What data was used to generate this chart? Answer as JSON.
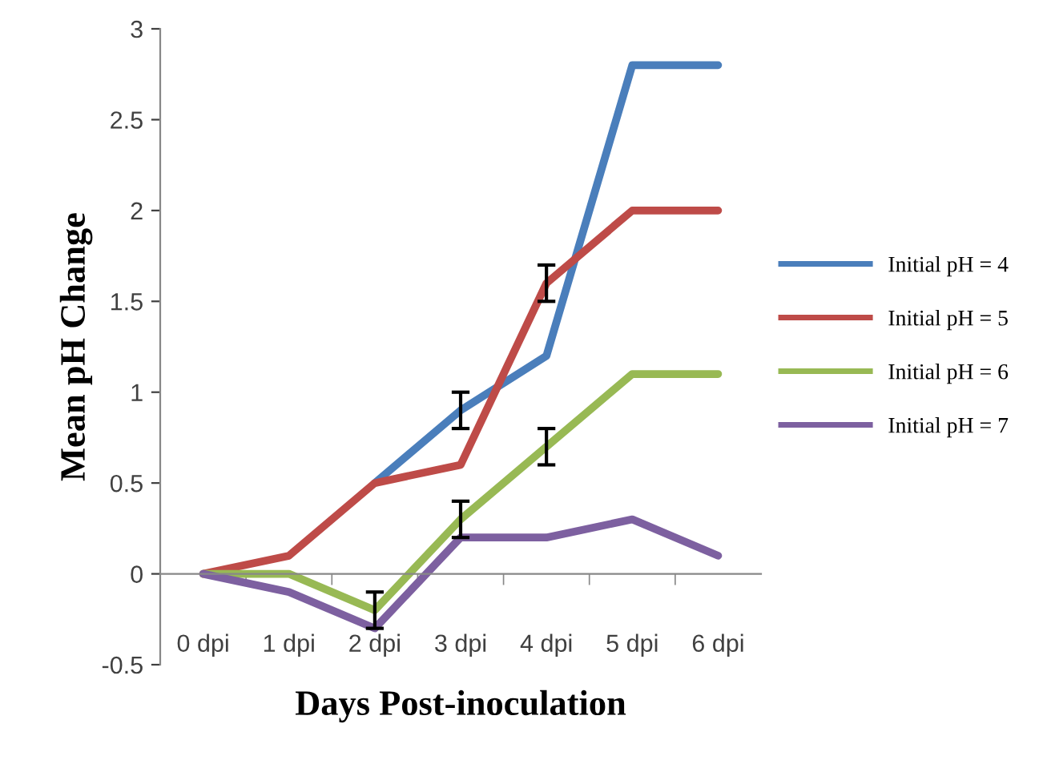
{
  "chart_data": {
    "type": "line",
    "xlabel": "Days Post-inoculation",
    "ylabel": "Mean pH Change",
    "categories": [
      "0 dpi",
      "1 dpi",
      "2 dpi",
      "3 dpi",
      "4 dpi",
      "5 dpi",
      "6 dpi"
    ],
    "series": [
      {
        "name": "Initial pH = 4",
        "color": "#4a7ebb",
        "values": [
          null,
          null,
          0.5,
          0.9,
          1.2,
          2.8,
          2.8
        ],
        "errors": [
          null,
          null,
          null,
          0.1,
          null,
          null,
          null
        ]
      },
      {
        "name": "Initial pH = 5",
        "color": "#be4b48",
        "values": [
          0,
          0.1,
          0.5,
          0.6,
          1.6,
          2.0,
          2.0
        ],
        "errors": [
          null,
          null,
          null,
          null,
          0.1,
          null,
          null
        ]
      },
      {
        "name": "Initial pH = 6",
        "color": "#98b954",
        "values": [
          0,
          0,
          -0.2,
          0.3,
          0.7,
          1.1,
          1.1
        ],
        "errors": [
          null,
          null,
          0.1,
          0.1,
          0.1,
          null,
          null
        ]
      },
      {
        "name": "Initial pH = 7",
        "color": "#7d60a0",
        "values": [
          0,
          -0.1,
          -0.3,
          0.2,
          0.2,
          0.3,
          0.1
        ]
      }
    ],
    "ylim": [
      -0.5,
      3
    ],
    "yticks": [
      -0.5,
      0,
      0.5,
      1,
      1.5,
      2,
      2.5,
      3
    ],
    "grid": false,
    "legend": "right",
    "marker": "none",
    "line_style": "solid"
  }
}
